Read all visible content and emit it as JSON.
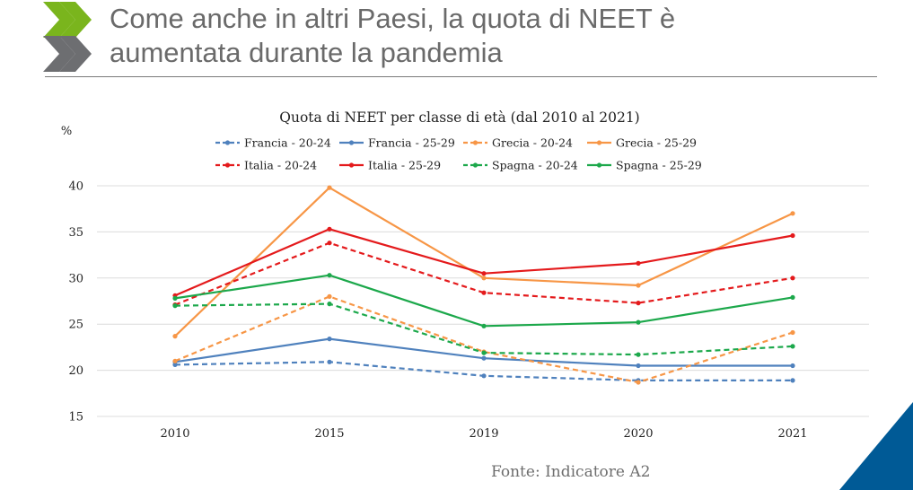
{
  "slide": {
    "title_line1": "Come anche in altri Paesi, la quota di NEET è",
    "title_line2": "aumentata durante la pandemia",
    "source": "Fonte: Indicatore A2",
    "brand_colors": {
      "green": "#7ab51d",
      "gray": "#6d6e71",
      "blue": "#005a96"
    }
  },
  "chart_data": {
    "type": "line",
    "title": "Quota di NEET per classe di età (dal 2010 al 2021)",
    "unit_label": "%",
    "categories": [
      "2010",
      "2015",
      "2019",
      "2020",
      "2021"
    ],
    "ylim": [
      15,
      40
    ],
    "yticks": [
      15,
      20,
      25,
      30,
      35,
      40
    ],
    "grid": true,
    "legend_position": "top",
    "series": [
      {
        "name": "Francia - 20-24",
        "color": "#4f81bd",
        "dashed": true,
        "values": [
          20.6,
          20.9,
          19.4,
          18.9,
          18.9
        ]
      },
      {
        "name": "Francia - 25-29",
        "color": "#4f81bd",
        "dashed": false,
        "values": [
          20.9,
          23.4,
          21.3,
          20.5,
          20.5
        ]
      },
      {
        "name": "Grecia - 20-24",
        "color": "#f79646",
        "dashed": true,
        "values": [
          21.0,
          28.0,
          22.0,
          18.7,
          24.1
        ]
      },
      {
        "name": "Grecia - 25-29",
        "color": "#f79646",
        "dashed": false,
        "values": [
          23.7,
          39.8,
          30.0,
          29.2,
          37.0
        ]
      },
      {
        "name": "Italia - 20-24",
        "color": "#e41a1c",
        "dashed": true,
        "values": [
          27.1,
          33.8,
          28.4,
          27.3,
          30.0
        ]
      },
      {
        "name": "Italia - 25-29",
        "color": "#e41a1c",
        "dashed": false,
        "values": [
          28.1,
          35.3,
          30.5,
          31.6,
          34.6
        ]
      },
      {
        "name": "Spagna - 20-24",
        "color": "#1ca84b",
        "dashed": true,
        "values": [
          27.0,
          27.2,
          21.9,
          21.7,
          22.6
        ]
      },
      {
        "name": "Spagna - 25-29",
        "color": "#1ca84b",
        "dashed": false,
        "values": [
          27.8,
          30.3,
          24.8,
          25.2,
          27.9
        ]
      }
    ]
  }
}
